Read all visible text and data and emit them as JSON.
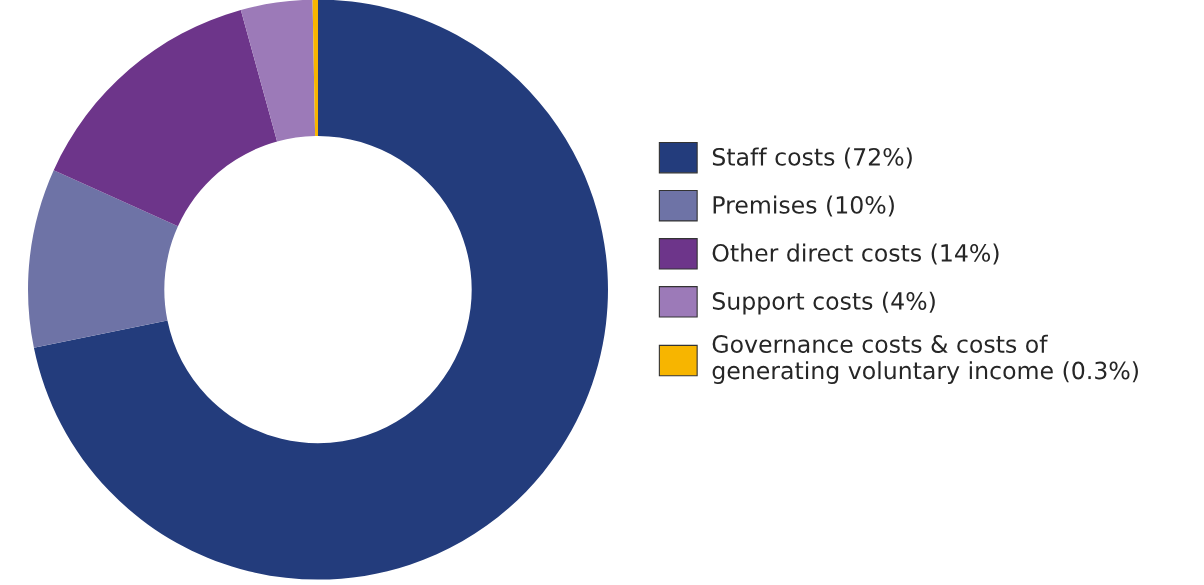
{
  "chart_data": {
    "type": "donut",
    "categories": [
      "Staff costs (72%)",
      "Premises (10%)",
      "Other direct costs (14%)",
      "Support costs (4%)",
      "Governance costs & costs of\ngenerating voluntary income (0.3%)"
    ],
    "values": [
      72,
      10,
      14,
      4,
      0.3
    ],
    "colors": [
      "#233c7c",
      "#6e73a6",
      "#6d358a",
      "#9c7ab8",
      "#f7b500"
    ],
    "legend": "right"
  }
}
